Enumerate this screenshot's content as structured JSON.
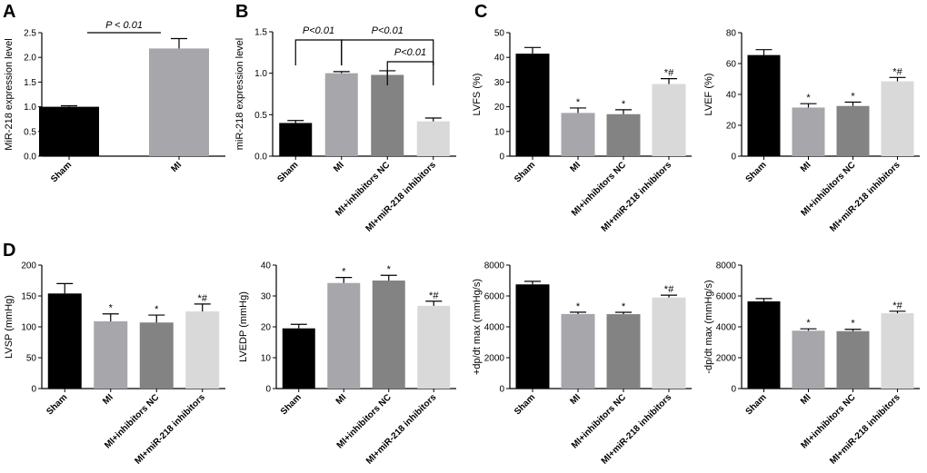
{
  "panel_letters": [
    "A",
    "B",
    "C",
    "D"
  ],
  "colors": {
    "sham": "#000000",
    "mi": "#a6a6ab",
    "nc": "#838383",
    "inhib": "#d9d9d9",
    "axis": "#000000"
  },
  "chart_data": [
    {
      "id": "A",
      "type": "bar",
      "title": "",
      "xlabel": "",
      "ylabel": "MiR-218 expression level",
      "ylim": [
        0,
        2.5
      ],
      "yticks": [
        0,
        0.5,
        1.0,
        1.5,
        2.0,
        2.5
      ],
      "ytick_labels": [
        "0.0",
        "0.5",
        "1.0",
        "1.5",
        "2.0",
        "2.5"
      ],
      "categories": [
        "Sham",
        "MI"
      ],
      "values": [
        1.0,
        2.18
      ],
      "errors": [
        0.02,
        0.2
      ],
      "annotations": [
        "",
        ""
      ],
      "significance": [
        {
          "from": 0,
          "to": 1,
          "label": "P < 0.01"
        }
      ]
    },
    {
      "id": "B",
      "type": "bar",
      "title": "",
      "xlabel": "",
      "ylabel": "miR-218 expression level",
      "ylim": [
        0,
        1.5
      ],
      "yticks": [
        0,
        0.5,
        1.0,
        1.5
      ],
      "ytick_labels": [
        "0.0",
        "0.5",
        "1.0",
        "1.5"
      ],
      "categories": [
        "Sham",
        "MI",
        "MI+inhibitors NC",
        "MI+miR-218 inhibitors"
      ],
      "values": [
        0.4,
        1.0,
        0.98,
        0.42
      ],
      "errors": [
        0.03,
        0.02,
        0.05,
        0.04
      ],
      "annotations": [
        "",
        "",
        "",
        ""
      ],
      "significance": [
        {
          "from": 0,
          "to": 1,
          "label": "P<0.01"
        },
        {
          "from": 1,
          "to": 3,
          "label": "P<0.01"
        },
        {
          "from": 2,
          "to": 3,
          "label": "P<0.01"
        }
      ]
    },
    {
      "id": "C1",
      "type": "bar",
      "title": "",
      "xlabel": "",
      "ylabel": "LVFS (%)",
      "ylim": [
        0,
        50
      ],
      "yticks": [
        0,
        10,
        20,
        30,
        40,
        50
      ],
      "ytick_labels": [
        "0",
        "10",
        "20",
        "30",
        "40",
        "50"
      ],
      "categories": [
        "Sham",
        "MI",
        "MI+inhibitors NC",
        "MI+miR-218 inhibitors"
      ],
      "values": [
        41.5,
        17.5,
        17.0,
        29.2
      ],
      "errors": [
        2.5,
        2.0,
        1.8,
        2.2
      ],
      "annotations": [
        "",
        "*",
        "*",
        "*#"
      ],
      "significance": []
    },
    {
      "id": "C2",
      "type": "bar",
      "title": "",
      "xlabel": "",
      "ylabel": "LVEF (%)",
      "ylim": [
        0,
        80
      ],
      "yticks": [
        0,
        20,
        40,
        60,
        80
      ],
      "ytick_labels": [
        "0",
        "20",
        "40",
        "60",
        "80"
      ],
      "categories": [
        "Sham",
        "MI",
        "MI+inhibitors NC",
        "MI+miR-218 inhibitors"
      ],
      "values": [
        65.5,
        31.5,
        32.5,
        48.5
      ],
      "errors": [
        3.5,
        2.5,
        2.5,
        2.5
      ],
      "annotations": [
        "",
        "*",
        "*",
        "*#"
      ],
      "significance": []
    },
    {
      "id": "D1",
      "type": "bar",
      "title": "",
      "xlabel": "",
      "ylabel": "LVSP (mmHg)",
      "ylim": [
        0,
        200
      ],
      "yticks": [
        0,
        50,
        100,
        150,
        200
      ],
      "ytick_labels": [
        "0",
        "50",
        "100",
        "150",
        "200"
      ],
      "categories": [
        "Sham",
        "MI",
        "MI+inhibitors NC",
        "MI+miR-218 inhibitors"
      ],
      "values": [
        154,
        109,
        107,
        125
      ],
      "errors": [
        16,
        12,
        12,
        12
      ],
      "annotations": [
        "",
        "*",
        "*",
        "*#"
      ],
      "significance": []
    },
    {
      "id": "D2",
      "type": "bar",
      "title": "",
      "xlabel": "",
      "ylabel": "LVEDP (mmHg)",
      "ylim": [
        0,
        40
      ],
      "yticks": [
        0,
        10,
        20,
        30,
        40
      ],
      "ytick_labels": [
        "0",
        "10",
        "20",
        "30",
        "40"
      ],
      "categories": [
        "Sham",
        "MI",
        "MI+inhibitors NC",
        "MI+miR-218 inhibitors"
      ],
      "values": [
        19.5,
        34.2,
        35.0,
        26.8
      ],
      "errors": [
        1.3,
        1.8,
        1.7,
        1.5
      ],
      "annotations": [
        "",
        "*",
        "*",
        "*#"
      ],
      "significance": []
    },
    {
      "id": "D3",
      "type": "bar",
      "title": "",
      "xlabel": "",
      "ylabel": "+dp/dt max (mmHg/s)",
      "ylim": [
        0,
        8000
      ],
      "yticks": [
        0,
        2000,
        4000,
        6000,
        8000
      ],
      "ytick_labels": [
        "0",
        "2000",
        "4000",
        "6000",
        "8000"
      ],
      "categories": [
        "Sham",
        "MI",
        "MI+inhibitors NC",
        "MI+miR-218 inhibitors"
      ],
      "values": [
        6750,
        4830,
        4820,
        5900
      ],
      "errors": [
        200,
        120,
        120,
        150
      ],
      "annotations": [
        "",
        "*",
        "*",
        "*#"
      ],
      "significance": []
    },
    {
      "id": "D4",
      "type": "bar",
      "title": "",
      "xlabel": "",
      "ylabel": "-dp/dt max (mmHg/s)",
      "ylim": [
        0,
        8000
      ],
      "yticks": [
        0,
        2000,
        4000,
        6000,
        8000
      ],
      "ytick_labels": [
        "0",
        "2000",
        "4000",
        "6000",
        "8000"
      ],
      "categories": [
        "Sham",
        "MI",
        "MI+inhibitors NC",
        "MI+miR-218 inhibitors"
      ],
      "values": [
        5650,
        3750,
        3720,
        4880
      ],
      "errors": [
        180,
        120,
        120,
        130
      ],
      "annotations": [
        "",
        "*",
        "*",
        "*#"
      ],
      "significance": []
    }
  ]
}
